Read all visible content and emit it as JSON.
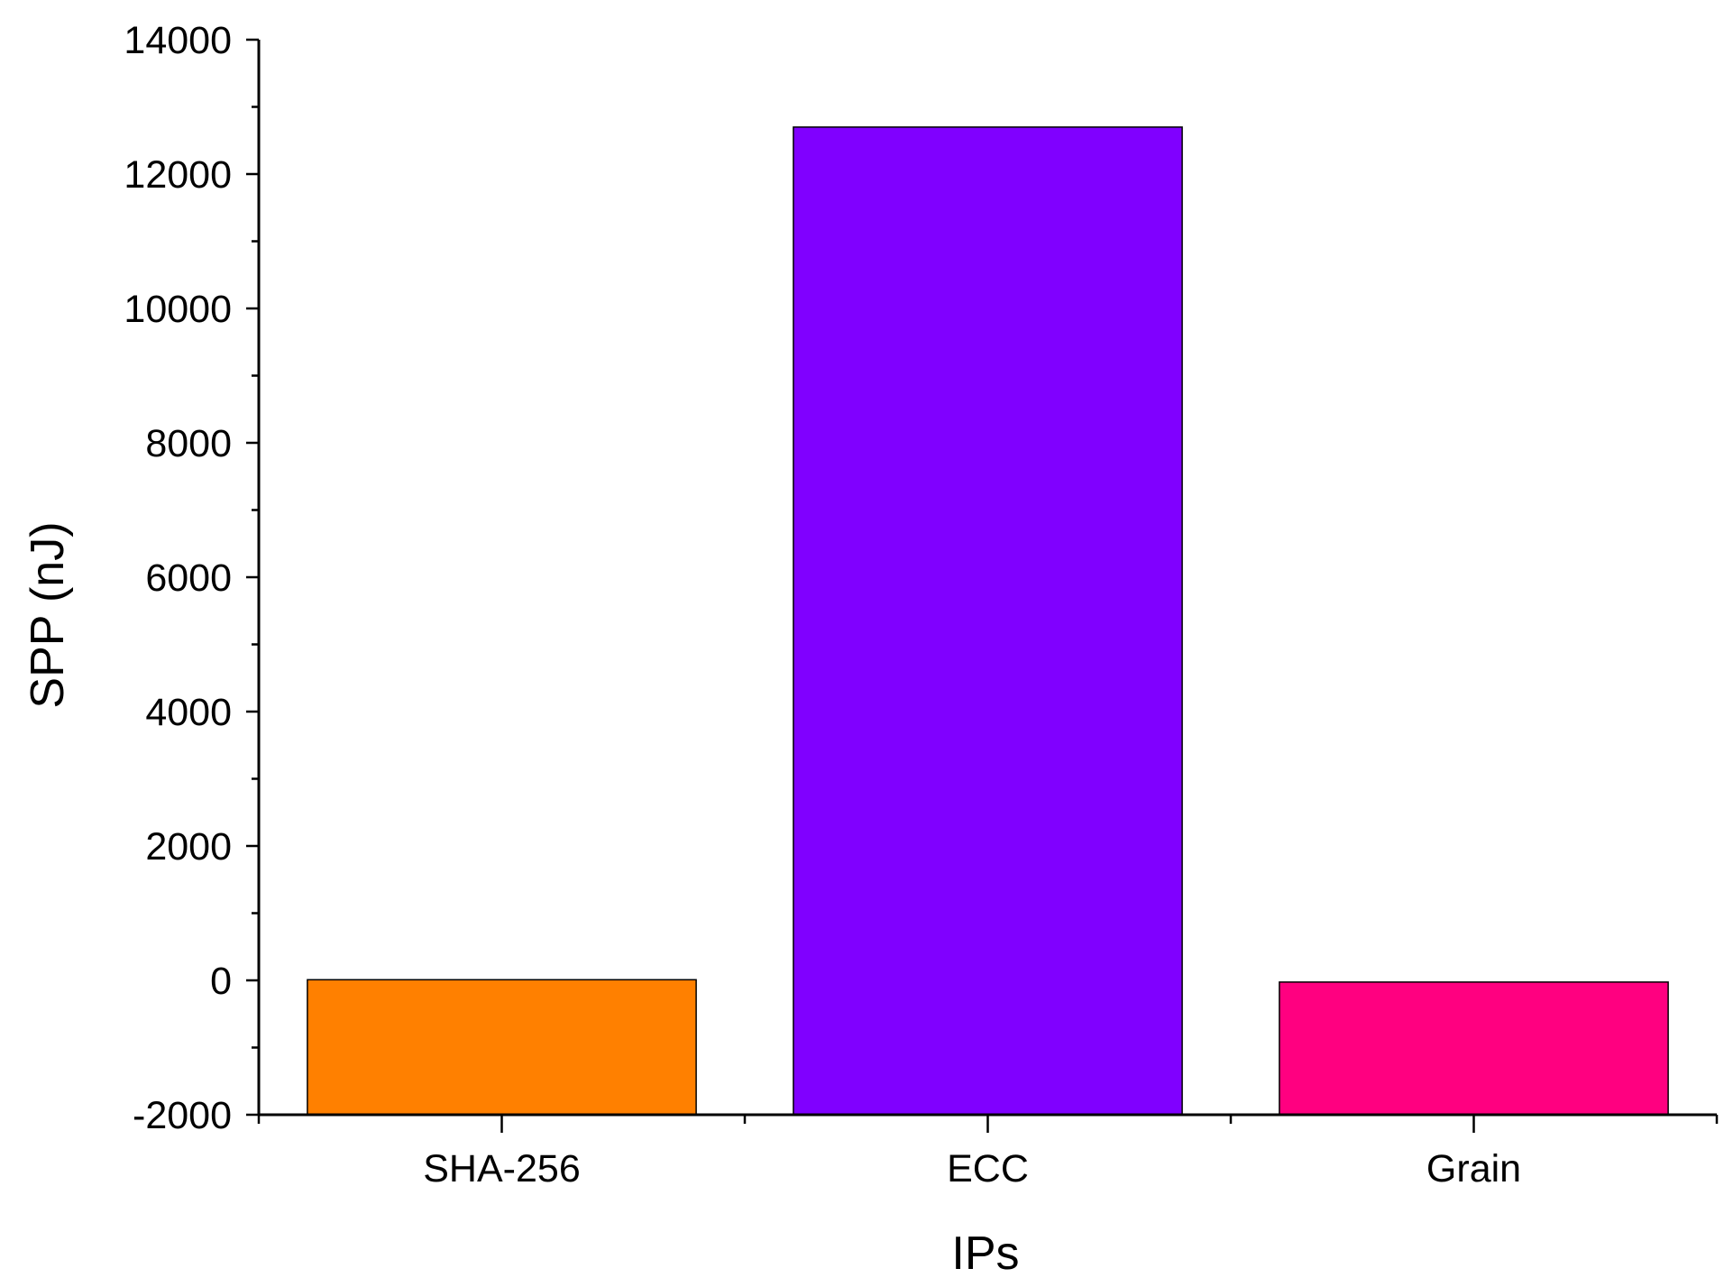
{
  "chart_data": {
    "type": "bar",
    "title": "",
    "xlabel": "IPs",
    "ylabel": "SPP (nJ)",
    "categories": [
      "SHA-256",
      "ECC",
      "Grain"
    ],
    "series": [
      {
        "values": [
          10,
          12700,
          -25
        ],
        "colors": [
          "#ff8000",
          "#8000ff",
          "#ff0080"
        ]
      }
    ],
    "ylim": [
      -2000,
      14000
    ],
    "yticks": [
      -2000,
      0,
      2000,
      4000,
      6000,
      8000,
      10000,
      12000,
      14000
    ],
    "ytick_labels": [
      "-2000",
      "0",
      "2000",
      "4000",
      "6000",
      "8000",
      "10000",
      "12000",
      "14000"
    ],
    "y_minor_step": 1000,
    "bar_baseline": -2000,
    "grid": false,
    "legend": "none",
    "axis_color": "#000000",
    "bar_edge_color": "#000000"
  }
}
